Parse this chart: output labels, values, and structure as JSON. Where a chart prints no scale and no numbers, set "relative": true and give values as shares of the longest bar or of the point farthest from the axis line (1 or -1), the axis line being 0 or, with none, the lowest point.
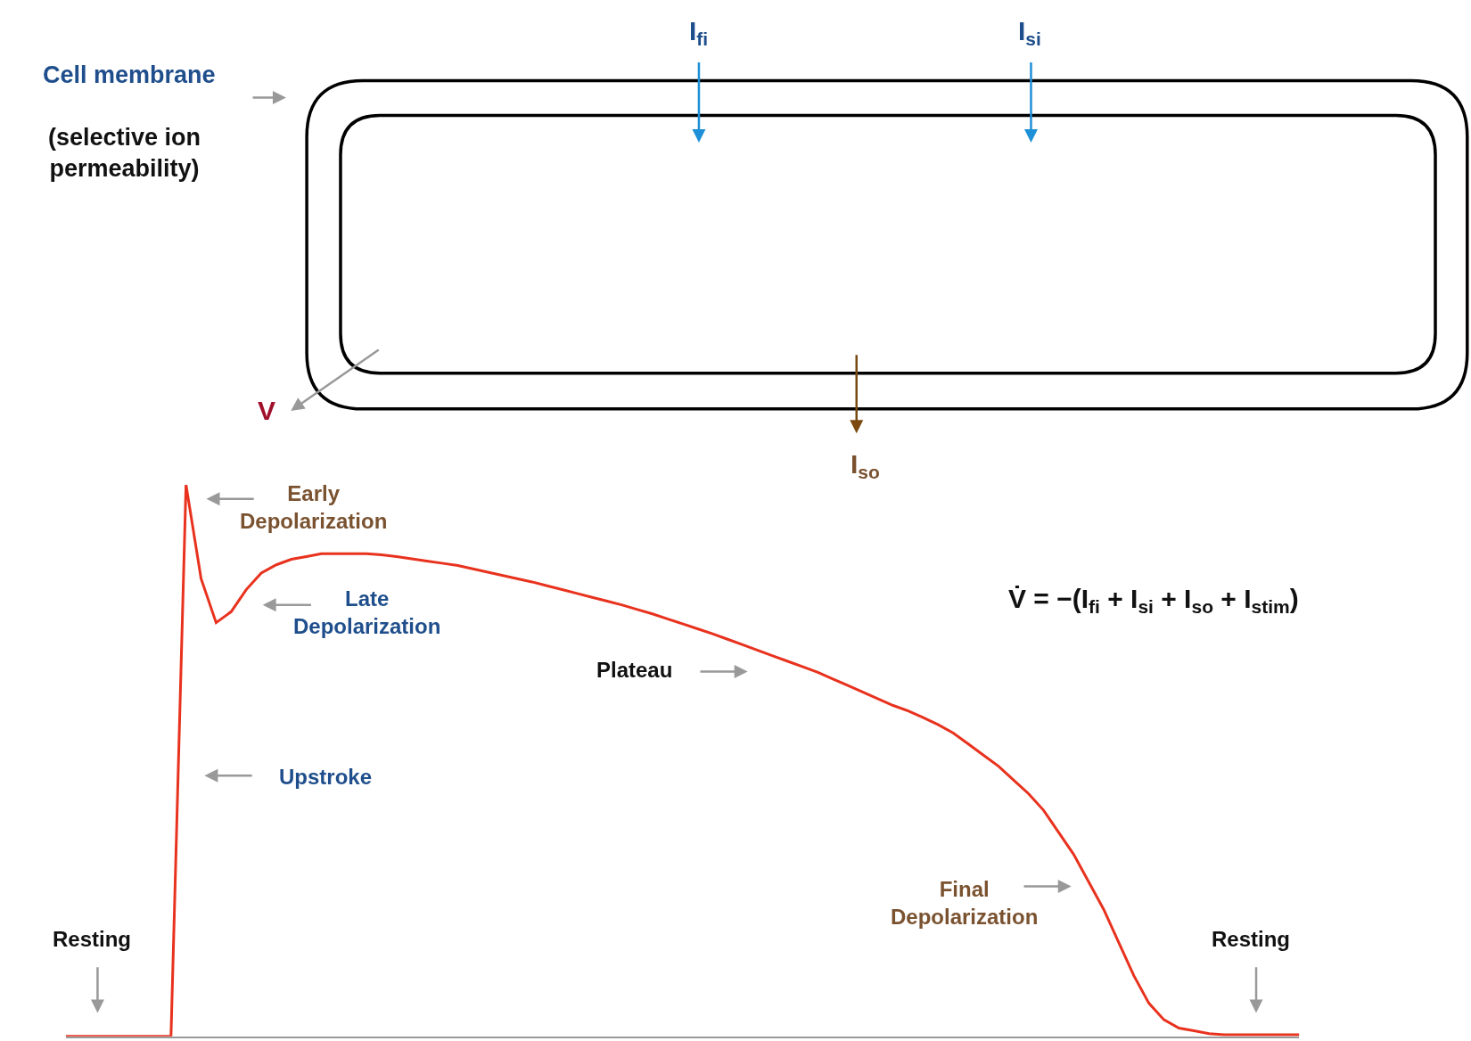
{
  "chart_data": {
    "type": "line",
    "relative": true,
    "color": "#e8321e",
    "categories": [
      null,
      null,
      null,
      null,
      null,
      null,
      null,
      null,
      null,
      null,
      null,
      null,
      null,
      null,
      null,
      null,
      null,
      null,
      null,
      null,
      null,
      null,
      null,
      null,
      null,
      null,
      null,
      null,
      null,
      null,
      null,
      null,
      null,
      null,
      null,
      null,
      null,
      null,
      null,
      null,
      null,
      null,
      null,
      null,
      null,
      null,
      null,
      null,
      null,
      null,
      null,
      null,
      null,
      null,
      null,
      null,
      null,
      null,
      null,
      null,
      null,
      null,
      null,
      null,
      null,
      null,
      null,
      null,
      null,
      null,
      null,
      null,
      null,
      null,
      null,
      null,
      null,
      null,
      null,
      null,
      null,
      null,
      null
    ],
    "values": [
      0,
      0,
      0,
      0,
      0,
      0,
      0,
      0,
      1.0,
      0.83,
      0.75,
      0.77,
      0.81,
      0.84,
      0.855,
      0.865,
      0.87,
      0.875,
      0.875,
      0.875,
      0.875,
      0.873,
      0.87,
      0.866,
      0.862,
      0.858,
      0.854,
      0.848,
      0.842,
      0.836,
      0.83,
      0.824,
      0.817,
      0.81,
      0.803,
      0.796,
      0.789,
      0.782,
      0.774,
      0.766,
      0.757,
      0.748,
      0.739,
      0.73,
      0.72,
      0.71,
      0.7,
      0.69,
      0.68,
      0.67,
      0.66,
      0.648,
      0.636,
      0.624,
      0.612,
      0.6,
      0.59,
      0.578,
      0.565,
      0.55,
      0.53,
      0.51,
      0.49,
      0.465,
      0.44,
      0.41,
      0.37,
      0.33,
      0.28,
      0.23,
      0.17,
      0.11,
      0.06,
      0.03,
      0.015,
      0.01,
      0.005,
      0.003,
      0.003,
      0.003,
      0.003,
      0.003,
      0.003
    ],
    "annotations": [
      "Cell membrane",
      "(selective ion permeability)",
      "I$_{fi}$",
      "I$_{si}$",
      "I$_{so}$",
      "V",
      "Early\nDepolarization",
      "Late\nDepolarization",
      "Upstroke",
      "Plateau",
      "Final\nDepolarization",
      "Resting",
      "Resting",
      "V̇ = −(I$_{fi}$ + I$_{si}$ + I$_{so}$ + I$_{stim}$)"
    ]
  }
}
